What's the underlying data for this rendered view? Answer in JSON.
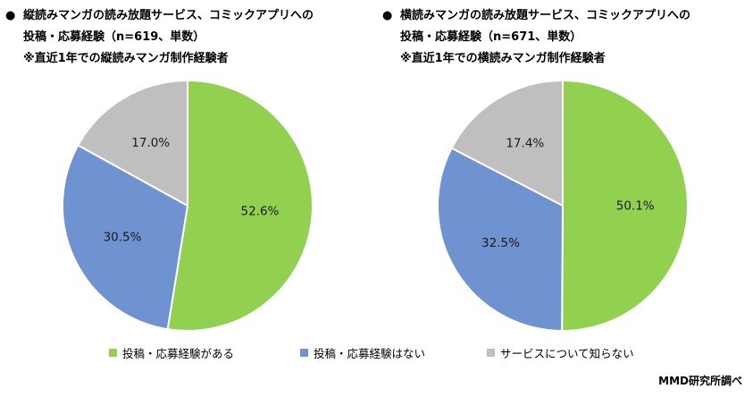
{
  "chart_data": [
    {
      "type": "pie",
      "title_lines": [
        "縦読みマンガの読み放題サービス、コミックアプリへの",
        "投稿・応募経験（n=619、単数）",
        "※直近1年での縦読みマンガ制作経験者"
      ],
      "categories": [
        "投稿・応募経験がある",
        "投稿・応募経験はない",
        "サービスについて知らない"
      ],
      "values": [
        52.6,
        30.5,
        17.0
      ],
      "value_labels": [
        "52.6%",
        "30.5%",
        "17.0%"
      ]
    },
    {
      "type": "pie",
      "title_lines": [
        "横読みマンガの読み放題サービス、コミックアプリへの",
        "投稿・応募経験（n=671、単数）",
        "※直近1年での横読みマンガ制作経験者"
      ],
      "categories": [
        "投稿・応募経験がある",
        "投稿・応募経験はない",
        "サービスについて知らない"
      ],
      "values": [
        50.1,
        32.5,
        17.4
      ],
      "value_labels": [
        "50.1%",
        "32.5%",
        "17.4%"
      ]
    }
  ],
  "legend": [
    {
      "label": "投稿・応募経験がある",
      "color": "#92d050"
    },
    {
      "label": "投稿・応募経験はない",
      "color": "#6f92d0"
    },
    {
      "label": "サービスについて知らない",
      "color": "#bfbfbf"
    }
  ],
  "bullet": "●",
  "source": "MMD研究所調べ"
}
